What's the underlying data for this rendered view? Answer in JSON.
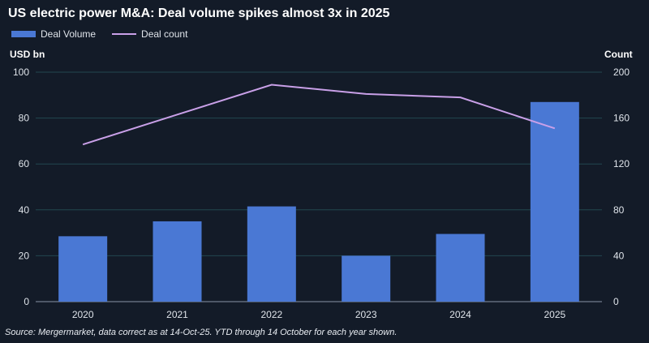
{
  "chart_data": {
    "type": "bar",
    "title": "US electric power M&A: Deal volume spikes almost 3x in 2025",
    "categories": [
      "2020",
      "2021",
      "2022",
      "2023",
      "2024",
      "2025"
    ],
    "series": [
      {
        "name": "Deal Volume",
        "axis": "left",
        "type": "bar",
        "values": [
          28.5,
          35,
          41.5,
          20,
          29.5,
          87
        ],
        "color": "#4a78d4"
      },
      {
        "name": "Deal count",
        "axis": "right",
        "type": "line",
        "values": [
          137,
          163,
          189,
          181,
          178,
          151
        ],
        "color": "#c9a0e8"
      }
    ],
    "ylabel": "USD bn",
    "ylim": [
      0,
      100
    ],
    "yticks": [
      "0",
      "20",
      "40",
      "60",
      "80",
      "100"
    ],
    "y2label": "Count",
    "y2lim": [
      0,
      200
    ],
    "y2ticks": [
      "0",
      "40",
      "80",
      "120",
      "160",
      "200"
    ],
    "grid": true,
    "legend": "top-left",
    "source": "Source: Mergermarket, data correct as at 14-Oct-25. YTD through 14 October for each year shown."
  }
}
